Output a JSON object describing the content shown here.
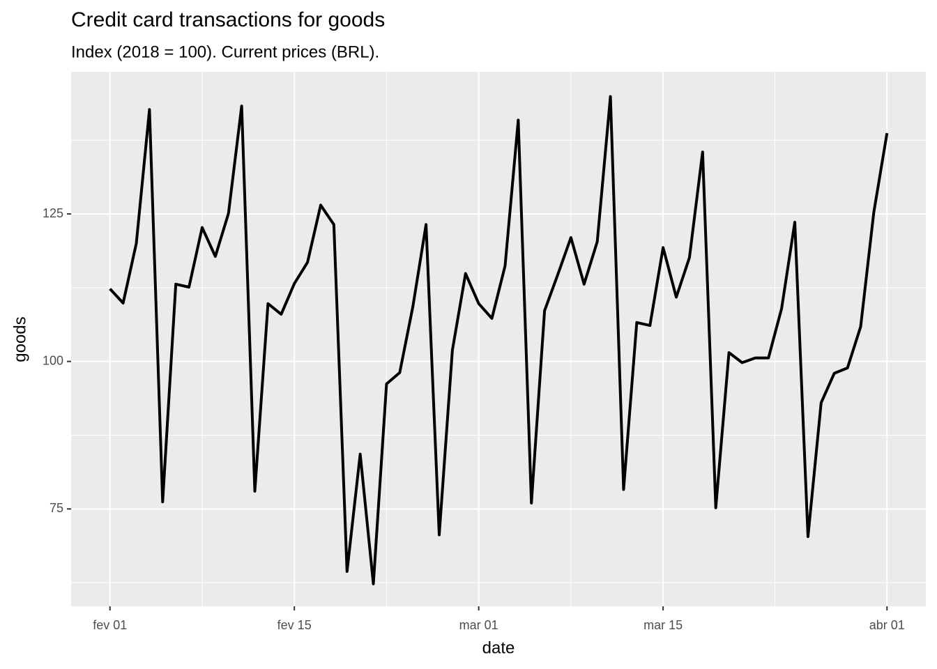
{
  "chart_data": {
    "type": "line",
    "title": "Credit card transactions for goods",
    "subtitle": "Index (2018 = 100). Current prices (BRL).",
    "x_label": "date",
    "y_label": "goods",
    "x": [
      0,
      1,
      2,
      3,
      4,
      5,
      6,
      7,
      8,
      9,
      10,
      11,
      12,
      13,
      14,
      15,
      16,
      17,
      18,
      19,
      20,
      21,
      22,
      23,
      24,
      25,
      26,
      27,
      28,
      29,
      30,
      31,
      32,
      33,
      34,
      35,
      36,
      37,
      38,
      39,
      40,
      41,
      42,
      43,
      44,
      45,
      46,
      47,
      48,
      49,
      50,
      51,
      52,
      53,
      54,
      55,
      56,
      57,
      58,
      59
    ],
    "series": [
      {
        "name": "goods",
        "color": "#000000",
        "values": [
          112.3,
          109.9,
          120.0,
          142.7,
          76.2,
          113.1,
          112.6,
          122.7,
          117.8,
          125.1,
          143.3,
          78.0,
          109.8,
          108.0,
          113.2,
          116.8,
          126.5,
          123.2,
          64.4,
          84.3,
          62.3,
          96.2,
          98.1,
          109.3,
          123.2,
          70.6,
          101.9,
          114.9,
          109.8,
          107.3,
          116.2,
          140.9,
          76.0,
          108.6,
          114.7,
          121.0,
          113.1,
          120.3,
          144.9,
          78.3,
          106.6,
          106.1,
          119.3,
          110.9,
          117.6,
          135.5,
          75.2,
          101.5,
          99.8,
          100.6,
          100.6,
          109.0,
          123.6,
          70.3,
          93.0,
          98.0,
          98.9,
          105.9,
          125.3,
          138.7
        ]
      }
    ],
    "xlim": [
      -2.95,
      61.95
    ],
    "xticks": [
      {
        "value": 0,
        "label": "fev 01"
      },
      {
        "value": 14,
        "label": "fev 15"
      },
      {
        "value": 28,
        "label": "mar 01"
      },
      {
        "value": 42,
        "label": "mar 15"
      },
      {
        "value": 59,
        "label": "abr 01"
      }
    ],
    "xminor": [
      7,
      21,
      35,
      50.5
    ],
    "ylim": [
      58.5,
      149.1
    ],
    "yticks": [
      75,
      100,
      125
    ],
    "yminor": [
      62.5,
      87.5,
      112.5,
      137.5
    ],
    "grid": true
  }
}
